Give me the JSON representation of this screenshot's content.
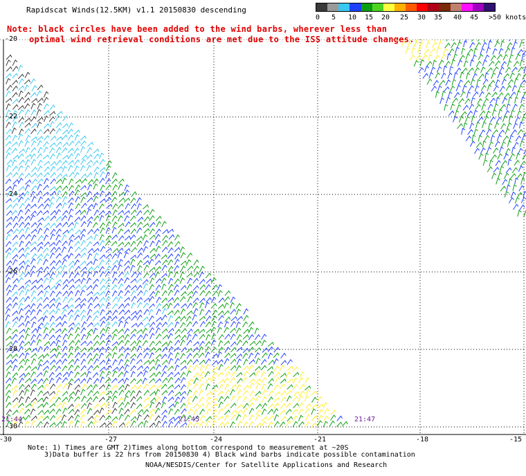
{
  "title": "Rapidscat Winds(12.5KM) v1.1 20150830 descending",
  "note_line1": "Note: black circles have been added to the wind barbs, wherever less than",
  "note_line2": "optimal wind retrieval conditions are met due to the ISS attitude changes.",
  "colorbar": {
    "labels": [
      "0",
      "5",
      "10",
      "15",
      "20",
      "25",
      "30",
      "35",
      "40",
      "45",
      ">50 knots"
    ],
    "colors": [
      "#3a3a3a",
      "#9a9a9a",
      "#39c8f0",
      "#2040ff",
      "#0a9f10",
      "#4ed420",
      "#ffff40",
      "#ffb000",
      "#ff5a00",
      "#ff0000",
      "#b00018",
      "#7a2a08",
      "#c08070",
      "#ff10ff",
      "#a000c0",
      "#301070"
    ]
  },
  "map": {
    "lat_labels": [
      "-20",
      "-22",
      "-24",
      "-26",
      "-28",
      "-30"
    ],
    "lon_labels": [
      "-30",
      "-27",
      "-24",
      "-21",
      "-18",
      "-15"
    ],
    "time_labels": [
      "21:44",
      "21:45",
      "21:47"
    ]
  },
  "footnote_line1": "Note: 1) Times are GMT 2)Times along bottom correspond to measurement at ~20S",
  "footnote_line2": "3)Data buffer is 22 hrs from 20150830 4) Black wind barbs indicate possible contamination",
  "credit": "NOAA/NESDIS/Center for Satellite Applications and Research"
}
